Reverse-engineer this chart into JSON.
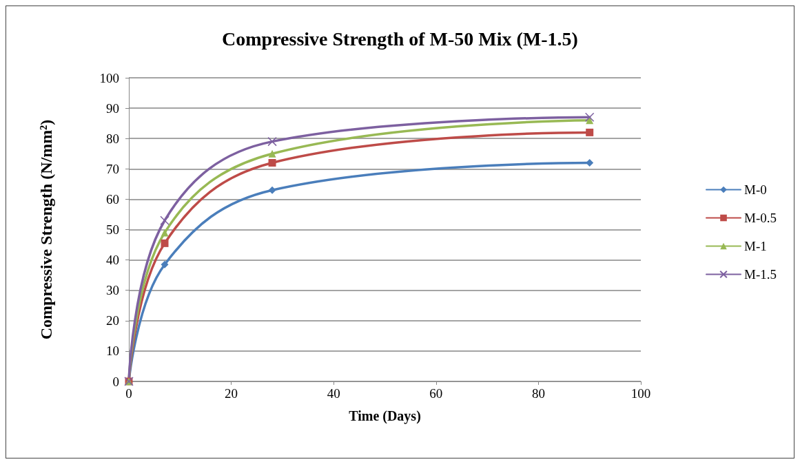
{
  "chart_data": {
    "type": "line",
    "title": "Compressive Strength of M-50 Mix (M-1.5)",
    "xlabel": "Time (Days)",
    "ylabel": "Compressive Strength (N/mm²)",
    "x": [
      0,
      7,
      28,
      90
    ],
    "series": [
      {
        "name": "M-0",
        "color": "#4a7ebb",
        "values": [
          0,
          38.5,
          63,
          72
        ],
        "marker": "diamond"
      },
      {
        "name": "M-0.5",
        "color": "#be4b48",
        "values": [
          0,
          45.5,
          72,
          82
        ],
        "marker": "square"
      },
      {
        "name": "M-1",
        "color": "#98b954",
        "values": [
          0,
          49,
          75,
          86
        ],
        "marker": "triangle"
      },
      {
        "name": "M-1.5",
        "color": "#7d60a0",
        "values": [
          0,
          53,
          79,
          87
        ],
        "marker": "cross"
      }
    ],
    "xlim": [
      0,
      100
    ],
    "xticks": [
      0,
      20,
      40,
      60,
      80,
      100
    ],
    "ylim": [
      0,
      100
    ],
    "yticks": [
      0,
      10,
      20,
      30,
      40,
      50,
      60,
      70,
      80,
      90,
      100
    ],
    "grid": "y",
    "legend": "right",
    "line_style": "solid"
  }
}
